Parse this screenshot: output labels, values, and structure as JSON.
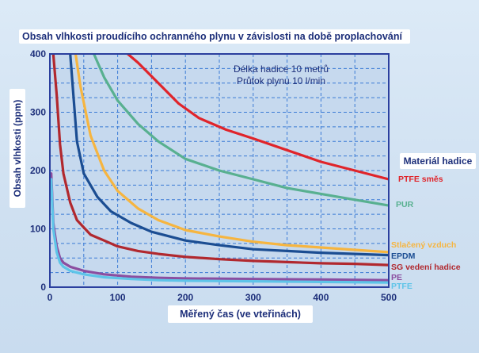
{
  "chart_data": {
    "type": "line",
    "title": "Obsah vlhkosti proudícího ochranného plynu v závislosti na době proplachování",
    "xlabel": "Měřený čas (ve vteřinách)",
    "ylabel": "Obsah vlhkosti (ppm)",
    "xlim": [
      0,
      500
    ],
    "ylim": [
      0,
      400
    ],
    "xticks": [
      0,
      100,
      200,
      300,
      400,
      500
    ],
    "yticks": [
      0,
      100,
      200,
      300,
      400
    ],
    "grid": true,
    "legend_title": "Materiál hadice",
    "annotations": [
      "Délka hadice 10 metrů",
      "Průtok plynu 10 l/min"
    ],
    "series": [
      {
        "name": "PTFE směs",
        "color": "#e0242a",
        "x": [
          115,
          130,
          160,
          190,
          220,
          260,
          300,
          350,
          400,
          450,
          500
        ],
        "y": [
          400,
          385,
          350,
          315,
          290,
          270,
          255,
          235,
          215,
          200,
          185
        ]
      },
      {
        "name": "PUR",
        "color": "#58b090",
        "x": [
          65,
          80,
          100,
          130,
          160,
          200,
          250,
          300,
          350,
          400,
          450,
          500
        ],
        "y": [
          400,
          360,
          320,
          280,
          250,
          220,
          200,
          185,
          170,
          160,
          150,
          140
        ]
      },
      {
        "name": "Stlačený vzduch",
        "color": "#f6b540",
        "x": [
          38,
          45,
          60,
          80,
          100,
          130,
          160,
          200,
          250,
          300,
          350,
          400,
          450,
          500
        ],
        "y": [
          400,
          345,
          260,
          200,
          165,
          135,
          115,
          98,
          87,
          78,
          72,
          68,
          64,
          60
        ]
      },
      {
        "name": "EPDM",
        "color": "#1b4d92",
        "x": [
          30,
          40,
          50,
          70,
          90,
          120,
          150,
          200,
          250,
          300,
          350,
          400,
          450,
          500
        ],
        "y": [
          400,
          250,
          195,
          155,
          130,
          110,
          95,
          80,
          72,
          65,
          62,
          59,
          57,
          55
        ]
      },
      {
        "name": "SG vedení hadice",
        "color": "#b1282e",
        "x": [
          5,
          10,
          15,
          20,
          30,
          40,
          60,
          80,
          100,
          130,
          160,
          200,
          250,
          300,
          350,
          400,
          450,
          500
        ],
        "y": [
          400,
          330,
          245,
          195,
          145,
          115,
          90,
          80,
          70,
          62,
          57,
          52,
          48,
          45,
          43,
          41,
          40,
          38
        ]
      },
      {
        "name": "PE",
        "color": "#8b4ea0",
        "x": [
          2,
          5,
          10,
          15,
          20,
          30,
          50,
          80,
          120,
          160,
          200,
          300,
          400,
          500
        ],
        "y": [
          195,
          110,
          70,
          50,
          42,
          35,
          28,
          22,
          18,
          16,
          15,
          14,
          13,
          12
        ]
      },
      {
        "name": "PTFE",
        "color": "#5ec4e8",
        "x": [
          2,
          5,
          10,
          15,
          20,
          30,
          50,
          80,
          120,
          160,
          200,
          300,
          400,
          500
        ],
        "y": [
          185,
          100,
          60,
          42,
          35,
          28,
          22,
          17,
          14,
          12,
          11,
          10,
          9,
          8
        ]
      }
    ]
  }
}
